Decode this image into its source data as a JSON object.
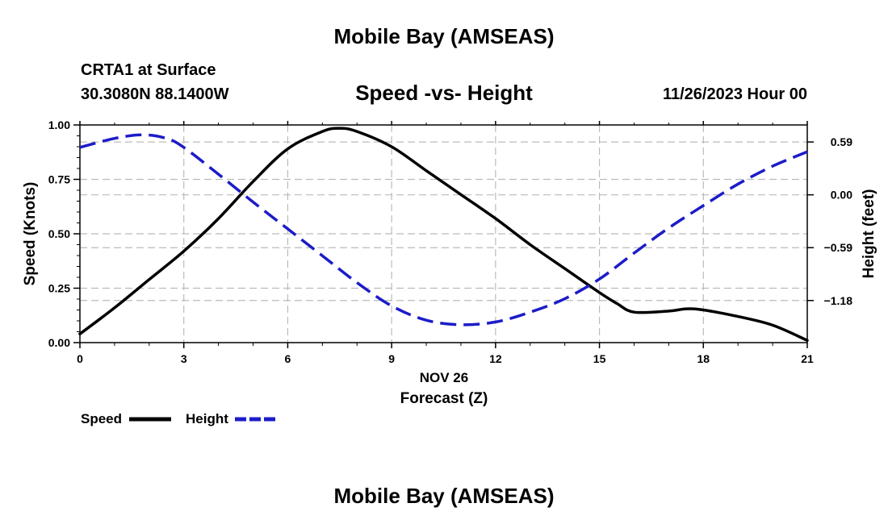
{
  "header": {
    "title": "Mobile Bay (AMSEAS)",
    "station": "CRTA1 at Surface",
    "coordinates": "30.3080N  88.1400W",
    "subtitle": "Speed -vs- Height",
    "datetime": "11/26/2023 Hour 00"
  },
  "footer": {
    "title": "Mobile Bay (AMSEAS)"
  },
  "colors": {
    "speed": "#000000",
    "height": "#1c1cc8",
    "grid": "#bbbbbb"
  },
  "chart_data": {
    "type": "line",
    "title": "Speed -vs- Height",
    "xlabel": "Forecast (Z)",
    "xlabel_date": "NOV 26",
    "ylabel": "Speed (Knots)",
    "ylabel_right": "Height (feet)",
    "xlim": [
      0,
      21
    ],
    "ylim": [
      0,
      1
    ],
    "ylim_right": [
      -1.65,
      0.78
    ],
    "x_ticks": [
      0,
      3,
      6,
      9,
      12,
      15,
      18,
      21
    ],
    "x_tick_labels": [
      "0",
      "3",
      "6",
      "9",
      "12",
      "15",
      "18",
      "21"
    ],
    "y_ticks": [
      0,
      0.25,
      0.5,
      0.75,
      1.0
    ],
    "y_tick_labels": [
      "0.00",
      "0.25",
      "0.50",
      "0.75",
      "1.00"
    ],
    "y_right_ticks": [
      0.59,
      0.0,
      -0.59,
      -1.18
    ],
    "y_right_tick_labels": [
      "0.59",
      "0.00",
      "−0.59",
      "−1.18"
    ],
    "grid": true,
    "legend": [
      "Speed",
      "Height"
    ],
    "legend_position": "bottom-left",
    "series": [
      {
        "name": "Speed",
        "axis": "left",
        "style": "solid",
        "x": [
          0,
          1,
          2,
          3,
          4,
          5,
          6,
          7,
          7.5,
          8,
          9,
          10,
          11,
          12,
          13,
          14,
          15,
          15.5,
          16,
          17,
          17.5,
          18,
          19,
          20,
          21
        ],
        "values": [
          0.04,
          0.16,
          0.29,
          0.42,
          0.57,
          0.74,
          0.89,
          0.97,
          0.985,
          0.97,
          0.9,
          0.79,
          0.68,
          0.57,
          0.45,
          0.34,
          0.23,
          0.18,
          0.14,
          0.145,
          0.155,
          0.15,
          0.12,
          0.08,
          0.01
        ]
      },
      {
        "name": "Height",
        "axis": "right",
        "style": "dashed",
        "x": [
          0,
          1,
          1.8,
          2.5,
          3,
          4,
          5,
          6,
          7,
          8,
          9,
          10,
          11,
          12,
          13,
          14,
          15,
          16,
          17,
          18,
          19,
          20,
          21
        ],
        "values": [
          0.53,
          0.63,
          0.67,
          0.63,
          0.53,
          0.23,
          -0.08,
          -0.38,
          -0.68,
          -0.98,
          -1.24,
          -1.4,
          -1.45,
          -1.42,
          -1.31,
          -1.16,
          -0.94,
          -0.65,
          -0.37,
          -0.12,
          0.12,
          0.32,
          0.48
        ]
      }
    ]
  }
}
